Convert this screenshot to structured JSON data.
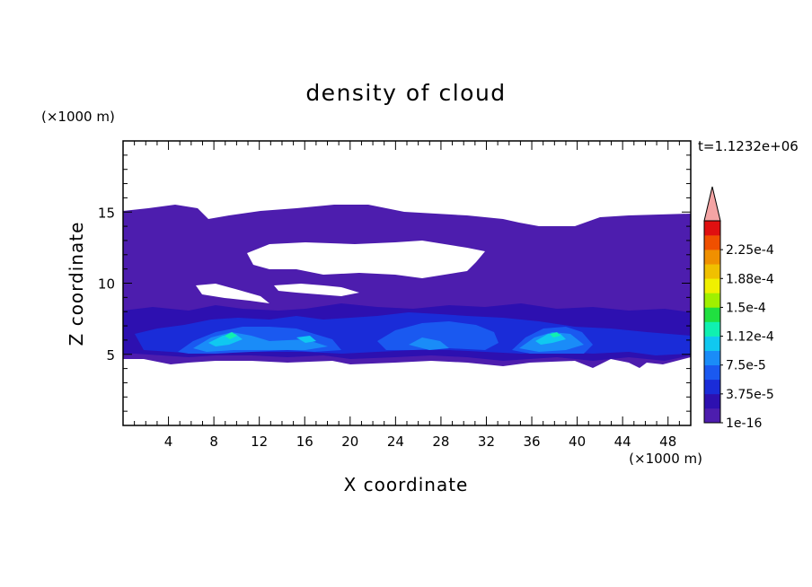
{
  "chart_data": {
    "type": "heatmap",
    "title": "density of cloud",
    "xlabel": "X coordinate",
    "ylabel": "Z coordinate",
    "x_unit": "(×1000 m)",
    "y_unit": "(×1000 m)",
    "time_label": "t=1.1232e+06",
    "xlim": [
      0,
      50
    ],
    "ylim": [
      0,
      20
    ],
    "x_ticks": [
      "4",
      "8",
      "12",
      "16",
      "20",
      "24",
      "28",
      "32",
      "36",
      "40",
      "44",
      "48"
    ],
    "y_ticks": [
      "5",
      "10",
      "15"
    ],
    "grid": false,
    "colorbar": {
      "position": "right",
      "labels": [
        "1e-16",
        "3.75e-5",
        "7.5e-5",
        "1.12e-4",
        "1.5e-4",
        "1.88e-4",
        "2.25e-4"
      ],
      "colors": [
        "#4d1dae",
        "#2d10b0",
        "#1a2cd8",
        "#1a59f0",
        "#1a8cf8",
        "#10c8f0",
        "#10f0b0",
        "#20e040",
        "#a0f000",
        "#f0f000",
        "#f0c000",
        "#f09000",
        "#f05000",
        "#e01010"
      ],
      "extend_color": "#f4a4a4"
    },
    "regions": [
      {
        "level": 0,
        "description": "broad low-density cloud layer",
        "x": [
          0,
          50
        ],
        "z": [
          4.4,
          15.4
        ]
      },
      {
        "level": 3,
        "description": "dense core",
        "x": [
          6,
          18
        ],
        "z": [
          5.0,
          7.2
        ]
      },
      {
        "level": 4,
        "description": "peak near x=10",
        "x": [
          9,
          11
        ],
        "z": [
          6.0,
          6.9
        ]
      },
      {
        "level": 3,
        "description": "dense core",
        "x": [
          34,
          41
        ],
        "z": [
          5.0,
          7.0
        ]
      },
      {
        "level": 4,
        "description": "peak near x=37",
        "x": [
          36,
          39
        ],
        "z": [
          6.0,
          6.8
        ]
      }
    ]
  }
}
